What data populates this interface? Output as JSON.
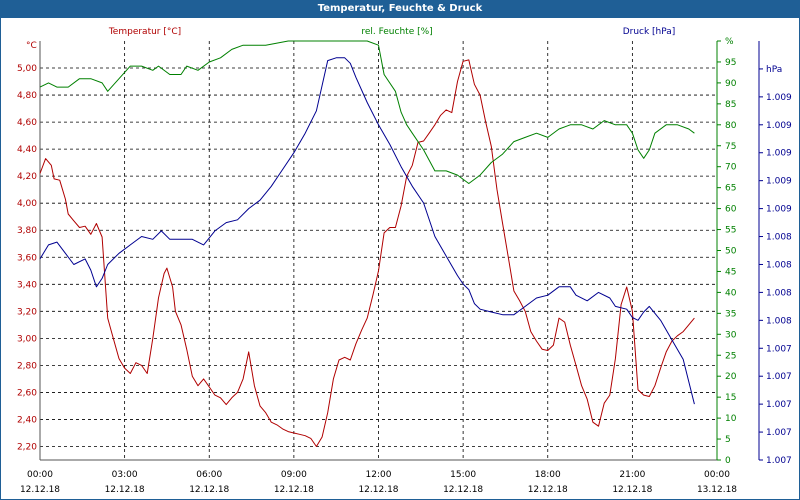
{
  "window": {
    "title": "Temperatur, Feuchte & Druck"
  },
  "colors": {
    "temperature": "#b00000",
    "humidity": "#008000",
    "pressure": "#000090",
    "titlebar": "#1f5f96",
    "grid": "#000000",
    "frame_axis": "#555555"
  },
  "chart_data": {
    "type": "line",
    "title": "Temperatur, Feuchte & Druck",
    "x": {
      "tick_times": [
        "00:00",
        "03:00",
        "06:00",
        "09:00",
        "12:00",
        "15:00",
        "18:00",
        "21:00",
        "00:00"
      ],
      "tick_dates": [
        "12.12.18",
        "12.12.18",
        "12.12.18",
        "12.12.18",
        "12.12.18",
        "12.12.18",
        "12.12.18",
        "12.12.18",
        "13.12.18"
      ],
      "range_hours": [
        0,
        24
      ]
    },
    "axes": {
      "temperature": {
        "label": "Temperatur [°C]",
        "unit": "°C",
        "range": [
          2.1,
          5.2
        ],
        "ticks": [
          "2,20",
          "2,40",
          "2,60",
          "2,80",
          "3,00",
          "3,20",
          "3,40",
          "3,60",
          "3,80",
          "4,00",
          "4,20",
          "4,40",
          "4,60",
          "4,80",
          "5,00"
        ],
        "tick_values": [
          2.2,
          2.4,
          2.6,
          2.8,
          3.0,
          3.2,
          3.4,
          3.6,
          3.8,
          4.0,
          4.2,
          4.4,
          4.6,
          4.8,
          5.0
        ]
      },
      "humidity": {
        "label": "rel. Feuchte [%]",
        "unit": "%",
        "range": [
          0,
          100
        ],
        "ticks": [
          "0",
          "5",
          "10",
          "15",
          "20",
          "25",
          "30",
          "35",
          "40",
          "45",
          "50",
          "55",
          "60",
          "65",
          "70",
          "75",
          "80",
          "85",
          "90",
          "95",
          "%"
        ],
        "tick_values": [
          0,
          5,
          10,
          15,
          20,
          25,
          30,
          35,
          40,
          45,
          50,
          55,
          60,
          65,
          70,
          75,
          80,
          85,
          90,
          95,
          100
        ]
      },
      "pressure": {
        "label": "Druck [hPa]",
        "unit": "hPa",
        "range": [
          0,
          15
        ],
        "ticks": [
          "1.007",
          "1.007",
          "1.007",
          "1.007",
          "1.007",
          "1.008",
          "1.008",
          "1.008",
          "1.008",
          "1.009",
          "1.009",
          "1.009",
          "1.009",
          "1.009",
          "hPa"
        ],
        "tick_values": [
          0,
          1,
          2,
          3,
          4,
          5,
          6,
          7,
          8,
          9,
          10,
          11,
          12,
          13,
          14
        ]
      }
    },
    "series": [
      {
        "name": "Temperatur",
        "axis": "temperature",
        "points": [
          [
            0,
            4.22
          ],
          [
            0.2,
            4.33
          ],
          [
            0.4,
            4.28
          ],
          [
            0.5,
            4.18
          ],
          [
            0.7,
            4.17
          ],
          [
            0.9,
            4.03
          ],
          [
            1.0,
            3.92
          ],
          [
            1.2,
            3.87
          ],
          [
            1.4,
            3.82
          ],
          [
            1.6,
            3.83
          ],
          [
            1.8,
            3.77
          ],
          [
            2.0,
            3.85
          ],
          [
            2.2,
            3.75
          ],
          [
            2.4,
            3.15
          ],
          [
            2.6,
            3.0
          ],
          [
            2.8,
            2.85
          ],
          [
            3.0,
            2.78
          ],
          [
            3.2,
            2.74
          ],
          [
            3.4,
            2.82
          ],
          [
            3.6,
            2.8
          ],
          [
            3.8,
            2.74
          ],
          [
            4.0,
            3.0
          ],
          [
            4.2,
            3.3
          ],
          [
            4.4,
            3.48
          ],
          [
            4.5,
            3.52
          ],
          [
            4.7,
            3.38
          ],
          [
            4.8,
            3.2
          ],
          [
            5.0,
            3.1
          ],
          [
            5.2,
            2.92
          ],
          [
            5.4,
            2.72
          ],
          [
            5.6,
            2.65
          ],
          [
            5.8,
            2.7
          ],
          [
            6.0,
            2.64
          ],
          [
            6.2,
            2.58
          ],
          [
            6.4,
            2.56
          ],
          [
            6.6,
            2.51
          ],
          [
            6.8,
            2.56
          ],
          [
            7.0,
            2.6
          ],
          [
            7.2,
            2.7
          ],
          [
            7.4,
            2.9
          ],
          [
            7.6,
            2.65
          ],
          [
            7.8,
            2.5
          ],
          [
            8.0,
            2.45
          ],
          [
            8.2,
            2.38
          ],
          [
            8.4,
            2.36
          ],
          [
            8.6,
            2.33
          ],
          [
            8.8,
            2.31
          ],
          [
            9.0,
            2.3
          ],
          [
            9.2,
            2.29
          ],
          [
            9.4,
            2.28
          ],
          [
            9.6,
            2.26
          ],
          [
            9.8,
            2.2
          ],
          [
            10.0,
            2.27
          ],
          [
            10.2,
            2.45
          ],
          [
            10.4,
            2.7
          ],
          [
            10.6,
            2.84
          ],
          [
            10.8,
            2.86
          ],
          [
            11.0,
            2.84
          ],
          [
            11.2,
            2.96
          ],
          [
            11.4,
            3.06
          ],
          [
            11.6,
            3.15
          ],
          [
            11.8,
            3.32
          ],
          [
            12.0,
            3.5
          ],
          [
            12.2,
            3.78
          ],
          [
            12.4,
            3.82
          ],
          [
            12.6,
            3.82
          ],
          [
            12.8,
            3.98
          ],
          [
            13.0,
            4.2
          ],
          [
            13.2,
            4.28
          ],
          [
            13.4,
            4.45
          ],
          [
            13.6,
            4.46
          ],
          [
            13.8,
            4.52
          ],
          [
            14.0,
            4.58
          ],
          [
            14.2,
            4.65
          ],
          [
            14.4,
            4.69
          ],
          [
            14.6,
            4.67
          ],
          [
            14.8,
            4.9
          ],
          [
            15.0,
            5.05
          ],
          [
            15.2,
            5.06
          ],
          [
            15.4,
            4.88
          ],
          [
            15.6,
            4.8
          ],
          [
            15.8,
            4.6
          ],
          [
            16.0,
            4.42
          ],
          [
            16.2,
            4.1
          ],
          [
            16.4,
            3.85
          ],
          [
            16.6,
            3.6
          ],
          [
            16.8,
            3.35
          ],
          [
            17.0,
            3.28
          ],
          [
            17.2,
            3.2
          ],
          [
            17.4,
            3.05
          ],
          [
            17.6,
            2.98
          ],
          [
            17.8,
            2.92
          ],
          [
            18.0,
            2.91
          ],
          [
            18.2,
            2.95
          ],
          [
            18.4,
            3.15
          ],
          [
            18.6,
            3.12
          ],
          [
            18.8,
            2.95
          ],
          [
            19.0,
            2.8
          ],
          [
            19.2,
            2.65
          ],
          [
            19.4,
            2.55
          ],
          [
            19.6,
            2.38
          ],
          [
            19.8,
            2.35
          ],
          [
            20.0,
            2.52
          ],
          [
            20.2,
            2.58
          ],
          [
            20.4,
            2.85
          ],
          [
            20.6,
            3.25
          ],
          [
            20.8,
            3.38
          ],
          [
            21.0,
            3.2
          ],
          [
            21.2,
            2.62
          ],
          [
            21.4,
            2.58
          ],
          [
            21.6,
            2.57
          ],
          [
            21.8,
            2.65
          ],
          [
            22.0,
            2.78
          ],
          [
            22.2,
            2.9
          ],
          [
            22.4,
            2.98
          ],
          [
            22.6,
            3.02
          ],
          [
            22.8,
            3.05
          ],
          [
            23.0,
            3.1
          ],
          [
            23.2,
            3.15
          ]
        ]
      },
      {
        "name": "rel. Feuchte",
        "axis": "humidity",
        "points": [
          [
            0,
            89
          ],
          [
            0.3,
            90
          ],
          [
            0.6,
            89
          ],
          [
            1.0,
            89
          ],
          [
            1.4,
            91
          ],
          [
            1.8,
            91
          ],
          [
            2.2,
            90
          ],
          [
            2.4,
            88
          ],
          [
            2.8,
            91
          ],
          [
            3.2,
            94
          ],
          [
            3.6,
            94
          ],
          [
            4.0,
            93
          ],
          [
            4.2,
            94
          ],
          [
            4.6,
            92
          ],
          [
            5.0,
            92
          ],
          [
            5.2,
            94
          ],
          [
            5.6,
            93
          ],
          [
            6.0,
            95
          ],
          [
            6.4,
            96
          ],
          [
            6.8,
            98
          ],
          [
            7.2,
            99
          ],
          [
            7.6,
            99
          ],
          [
            8.0,
            99
          ],
          [
            8.4,
            99.5
          ],
          [
            8.8,
            100
          ],
          [
            9.2,
            100
          ],
          [
            9.6,
            100
          ],
          [
            10.0,
            100
          ],
          [
            10.4,
            100
          ],
          [
            10.8,
            100
          ],
          [
            11.2,
            100
          ],
          [
            11.6,
            100
          ],
          [
            12.0,
            99
          ],
          [
            12.2,
            92
          ],
          [
            12.6,
            88
          ],
          [
            12.8,
            83
          ],
          [
            13.0,
            80
          ],
          [
            13.2,
            78
          ],
          [
            13.6,
            74
          ],
          [
            14.0,
            69
          ],
          [
            14.4,
            69
          ],
          [
            14.8,
            68
          ],
          [
            15.2,
            66
          ],
          [
            15.6,
            68
          ],
          [
            16.0,
            71
          ],
          [
            16.4,
            73
          ],
          [
            16.8,
            76
          ],
          [
            17.2,
            77
          ],
          [
            17.6,
            78
          ],
          [
            18.0,
            77
          ],
          [
            18.4,
            79
          ],
          [
            18.8,
            80
          ],
          [
            19.2,
            80
          ],
          [
            19.6,
            79
          ],
          [
            20.0,
            81
          ],
          [
            20.4,
            80
          ],
          [
            20.8,
            80
          ],
          [
            21.0,
            78
          ],
          [
            21.2,
            74
          ],
          [
            21.4,
            72
          ],
          [
            21.6,
            74
          ],
          [
            21.8,
            78
          ],
          [
            22.2,
            80
          ],
          [
            22.6,
            80
          ],
          [
            23.0,
            79
          ],
          [
            23.2,
            78
          ]
        ]
      },
      {
        "name": "Druck",
        "axis": "pressure",
        "points": [
          [
            0,
            7.2
          ],
          [
            0.3,
            7.7
          ],
          [
            0.6,
            7.8
          ],
          [
            0.9,
            7.4
          ],
          [
            1.2,
            7.0
          ],
          [
            1.6,
            7.2
          ],
          [
            1.8,
            6.8
          ],
          [
            2.0,
            6.2
          ],
          [
            2.2,
            6.5
          ],
          [
            2.4,
            7.0
          ],
          [
            2.8,
            7.4
          ],
          [
            3.2,
            7.7
          ],
          [
            3.6,
            8.0
          ],
          [
            4.0,
            7.9
          ],
          [
            4.3,
            8.2
          ],
          [
            4.6,
            7.9
          ],
          [
            5.0,
            7.9
          ],
          [
            5.4,
            7.9
          ],
          [
            5.8,
            7.7
          ],
          [
            6.2,
            8.2
          ],
          [
            6.6,
            8.5
          ],
          [
            7.0,
            8.6
          ],
          [
            7.4,
            9.0
          ],
          [
            7.8,
            9.3
          ],
          [
            8.2,
            9.8
          ],
          [
            8.6,
            10.4
          ],
          [
            9.0,
            11.0
          ],
          [
            9.4,
            11.7
          ],
          [
            9.8,
            12.5
          ],
          [
            10.2,
            14.3
          ],
          [
            10.5,
            14.4
          ],
          [
            10.8,
            14.4
          ],
          [
            11.0,
            14.2
          ],
          [
            11.2,
            13.7
          ],
          [
            11.6,
            12.8
          ],
          [
            12.0,
            12.0
          ],
          [
            12.4,
            11.3
          ],
          [
            12.8,
            10.5
          ],
          [
            13.2,
            9.8
          ],
          [
            13.6,
            9.2
          ],
          [
            14.0,
            8.0
          ],
          [
            14.4,
            7.3
          ],
          [
            14.8,
            6.6
          ],
          [
            15.0,
            6.3
          ],
          [
            15.2,
            6.1
          ],
          [
            15.4,
            5.6
          ],
          [
            15.6,
            5.4
          ],
          [
            16.0,
            5.3
          ],
          [
            16.4,
            5.2
          ],
          [
            16.8,
            5.2
          ],
          [
            17.2,
            5.5
          ],
          [
            17.6,
            5.8
          ],
          [
            18.0,
            5.9
          ],
          [
            18.4,
            6.2
          ],
          [
            18.8,
            6.2
          ],
          [
            19.0,
            5.9
          ],
          [
            19.4,
            5.7
          ],
          [
            19.8,
            6.0
          ],
          [
            20.2,
            5.8
          ],
          [
            20.4,
            5.5
          ],
          [
            20.8,
            5.4
          ],
          [
            21.0,
            5.1
          ],
          [
            21.2,
            5.0
          ],
          [
            21.4,
            5.3
          ],
          [
            21.6,
            5.5
          ],
          [
            22.0,
            5.0
          ],
          [
            22.4,
            4.3
          ],
          [
            22.8,
            3.6
          ],
          [
            23.0,
            2.8
          ],
          [
            23.2,
            2.0
          ]
        ]
      }
    ]
  }
}
